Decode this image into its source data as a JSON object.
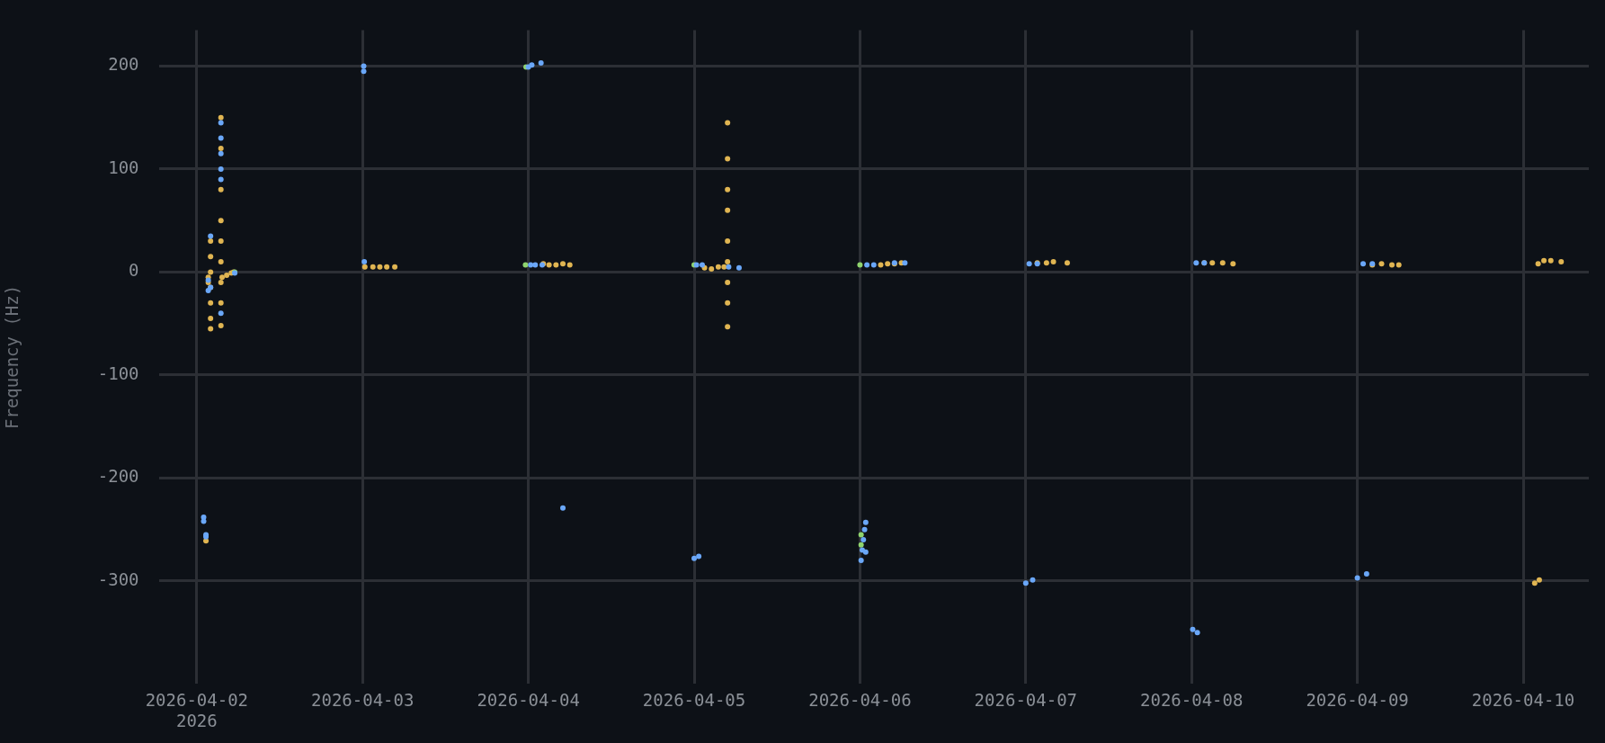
{
  "chart_data": {
    "type": "scatter",
    "ylabel": "Frequency (Hz)",
    "marker": "circle",
    "grid": true,
    "legend": false,
    "xlim": [
      "2026-04-01T18:30",
      "2026-04-10T09:30"
    ],
    "xticks": [
      {
        "value": "2026-04-02",
        "label": "2026-04-02\n2026"
      },
      {
        "value": "2026-04-03",
        "label": "2026-04-03"
      },
      {
        "value": "2026-04-04",
        "label": "2026-04-04"
      },
      {
        "value": "2026-04-05",
        "label": "2026-04-05"
      },
      {
        "value": "2026-04-06",
        "label": "2026-04-06"
      },
      {
        "value": "2026-04-07",
        "label": "2026-04-07"
      },
      {
        "value": "2026-04-08",
        "label": "2026-04-08"
      },
      {
        "value": "2026-04-09",
        "label": "2026-04-09"
      },
      {
        "value": "2026-04-10",
        "label": "2026-04-10"
      }
    ],
    "ylim": [
      -400,
      235
    ],
    "yticks": [
      -300,
      -200,
      -100,
      0,
      100,
      200
    ],
    "series": [
      {
        "color": "#6aa7f8",
        "x": [
          "2026-04-02T01:00",
          "2026-04-02T01:00",
          "2026-04-02T01:20",
          "2026-04-02T01:20",
          "2026-04-02T01:40",
          "2026-04-02T01:40",
          "2026-04-02T02:00",
          "2026-04-02T02:00",
          "2026-04-02T03:30",
          "2026-04-02T03:30",
          "2026-04-02T03:30",
          "2026-04-02T03:30",
          "2026-04-02T03:30",
          "2026-04-02T03:30",
          "2026-04-02T05:30",
          "2026-04-03T00:10",
          "2026-04-03T00:10",
          "2026-04-03T00:15",
          "2026-04-04T00:00",
          "2026-04-04T00:30",
          "2026-04-04T01:50",
          "2026-04-04T00:20",
          "2026-04-04T01:00",
          "2026-04-04T02:00",
          "2026-04-04T05:00",
          "2026-04-05T00:00",
          "2026-04-05T00:40",
          "2026-04-05T00:20",
          "2026-04-05T01:10",
          "2026-04-05T05:00",
          "2026-04-05T06:30",
          "2026-04-06T00:10",
          "2026-04-06T00:20",
          "2026-04-06T00:30",
          "2026-04-06T00:40",
          "2026-04-06T00:50",
          "2026-04-06T00:50",
          "2026-04-06T01:00",
          "2026-04-06T02:00",
          "2026-04-06T05:00",
          "2026-04-06T06:30",
          "2026-04-07T00:00",
          "2026-04-07T01:00",
          "2026-04-07T00:30",
          "2026-04-07T01:40",
          "2026-04-08T00:10",
          "2026-04-08T00:50",
          "2026-04-08T00:40",
          "2026-04-08T01:50",
          "2026-04-09T00:00",
          "2026-04-09T01:20",
          "2026-04-09T00:50",
          "2026-04-09T02:10"
        ],
        "values": [
          -238,
          -242,
          -255,
          -257,
          -18,
          -8,
          35,
          -15,
          145,
          130,
          115,
          100,
          90,
          -40,
          -1,
          200,
          195,
          10,
          199,
          201,
          203,
          7,
          7,
          7,
          -229,
          -278,
          -276,
          7,
          7,
          5,
          4,
          -280,
          -270,
          -260,
          -250,
          -243,
          -272,
          7,
          7,
          9,
          9,
          -302,
          -299,
          8,
          8,
          -347,
          -350,
          9,
          9,
          -297,
          -293,
          8,
          8
        ]
      },
      {
        "color": "#8fd46e",
        "x": [
          "2026-04-02T05:30",
          "2026-04-03T23:35",
          "2026-04-03T23:40",
          "2026-04-05T00:00",
          "2026-04-06T00:00",
          "2026-04-06T00:10",
          "2026-04-06T00:10"
        ],
        "values": [
          0,
          7,
          199,
          7,
          7,
          -255,
          -265
        ]
      },
      {
        "color": "#e0b552",
        "x": [
          "2026-04-02T01:20",
          "2026-04-02T02:00",
          "2026-04-02T02:00",
          "2026-04-02T02:00",
          "2026-04-02T02:00",
          "2026-04-02T02:00",
          "2026-04-02T02:00",
          "2026-04-02T02:00",
          "2026-04-02T01:40",
          "2026-04-02T01:40",
          "2026-04-02T03:30",
          "2026-04-02T03:30",
          "2026-04-02T03:30",
          "2026-04-02T03:30",
          "2026-04-02T03:30",
          "2026-04-02T03:30",
          "2026-04-02T03:30",
          "2026-04-02T03:30",
          "2026-04-02T03:30",
          "2026-04-02T03:40",
          "2026-04-02T04:20",
          "2026-04-02T05:00",
          "2026-04-02T05:20",
          "2026-04-03T00:20",
          "2026-04-03T01:30",
          "2026-04-03T02:30",
          "2026-04-03T03:30",
          "2026-04-03T04:40",
          "2026-04-04T02:10",
          "2026-04-04T03:00",
          "2026-04-04T04:00",
          "2026-04-04T05:00",
          "2026-04-04T06:00",
          "2026-04-05T01:30",
          "2026-04-05T02:30",
          "2026-04-05T03:30",
          "2026-04-05T04:20",
          "2026-04-05T04:50",
          "2026-04-05T04:50",
          "2026-04-05T04:50",
          "2026-04-05T04:50",
          "2026-04-05T04:50",
          "2026-04-05T04:50",
          "2026-04-05T04:50",
          "2026-04-05T04:50",
          "2026-04-05T04:50",
          "2026-04-06T03:00",
          "2026-04-06T04:00",
          "2026-04-06T05:00",
          "2026-04-06T06:00",
          "2026-04-07T01:40",
          "2026-04-07T03:00",
          "2026-04-07T04:00",
          "2026-04-07T06:00",
          "2026-04-08T01:50",
          "2026-04-08T03:00",
          "2026-04-08T04:30",
          "2026-04-08T06:00",
          "2026-04-09T02:10",
          "2026-04-09T03:30",
          "2026-04-09T05:00",
          "2026-04-09T06:00",
          "2026-04-10T01:40",
          "2026-04-10T02:20",
          "2026-04-10T02:10",
          "2026-04-10T03:00",
          "2026-04-10T04:00",
          "2026-04-10T05:30"
        ],
        "values": [
          -261,
          30,
          15,
          0,
          -15,
          -30,
          -45,
          -55,
          -10,
          -5,
          150,
          120,
          80,
          50,
          30,
          10,
          -10,
          -30,
          -52,
          -5,
          -3,
          -1,
          0,
          5,
          5,
          5,
          5,
          5,
          8,
          7,
          7,
          8,
          7,
          4,
          3,
          5,
          5,
          145,
          110,
          80,
          60,
          30,
          10,
          -10,
          -30,
          -53,
          7,
          8,
          8,
          9,
          9,
          9,
          10,
          9,
          9,
          9,
          9,
          8,
          7,
          8,
          7,
          7,
          -302,
          -299,
          8,
          11,
          11,
          10
        ]
      }
    ]
  }
}
